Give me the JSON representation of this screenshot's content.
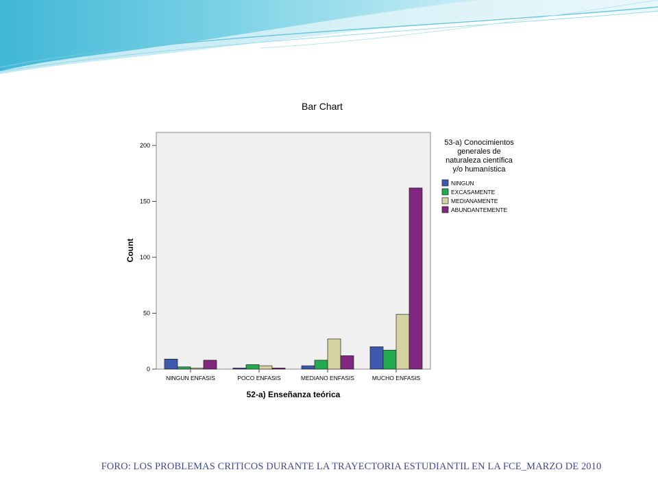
{
  "slide": {
    "footer": "FORO: LOS PROBLEMAS CRITICOS  DURANTE LA TRAYECTORIA ESTUDIANTIL EN LA FCE_MARZO DE 2010"
  },
  "colors": {
    "banner_light": "#cdeef5",
    "banner_mid": "#7fd3e6",
    "banner_dark": "#3fa8c8",
    "plot_bg": "#f0f0f0"
  },
  "chart_data": {
    "type": "bar",
    "title": "Bar Chart",
    "xlabel": "52-a) Enseñanza teórica",
    "ylabel": "Count",
    "categories": [
      "NINGUN ENFASIS",
      "POCO ENFASIS",
      "MEDIANO ENFASIS",
      "MUCHO ENFASIS"
    ],
    "ylim": [
      0,
      220
    ],
    "yticks": [
      0,
      50,
      100,
      150,
      200
    ],
    "legend_title": "53-a) Conocimientos generales de naturaleza científica y/o humanística",
    "legend_title_lines": [
      "53-a) Conocimientos",
      "generales de",
      "naturaleza científica",
      "y/o humanística"
    ],
    "legend_position": "right",
    "grid": false,
    "series": [
      {
        "name": "NINGUN",
        "color": "#3e58ac",
        "values": [
          9,
          1,
          3,
          20
        ]
      },
      {
        "name": "EXCASAMENTE",
        "color": "#22aa4e",
        "values": [
          2,
          4,
          8,
          17
        ]
      },
      {
        "name": "MEDIANAMENTE",
        "color": "#d6d3a2",
        "values": [
          1,
          3,
          27,
          49
        ]
      },
      {
        "name": "ABUNDANTEMENTE",
        "color": "#80277f",
        "values": [
          8,
          1,
          12,
          162
        ]
      }
    ]
  }
}
